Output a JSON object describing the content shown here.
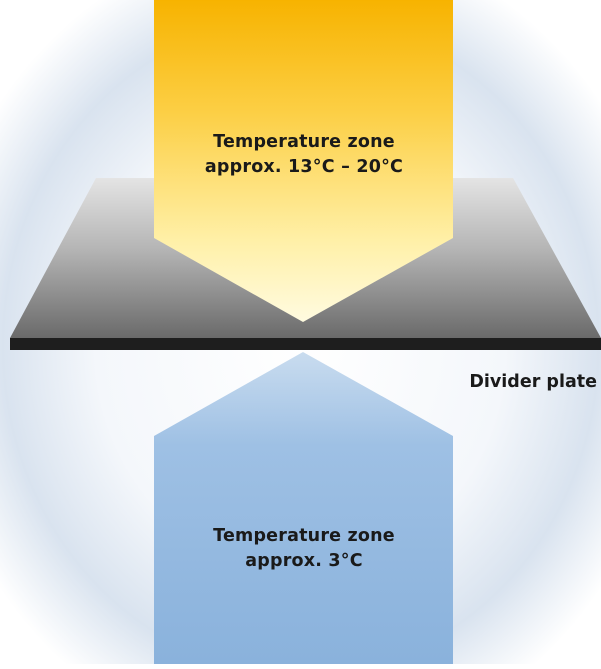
{
  "diagram": {
    "warm_zone": {
      "line1": "Temperature zone",
      "line2": "approx. 13°C – 20°C",
      "color": "#f7b800"
    },
    "cold_zone": {
      "line1": "Temperature zone",
      "line2": "approx. 3°C",
      "color": "#8fb6de"
    },
    "divider": {
      "label": "Divider plate",
      "color": "#1e1e1e"
    }
  }
}
